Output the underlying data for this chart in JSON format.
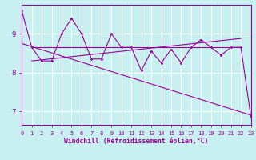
{
  "bg_color": "#c8f0f0",
  "line_color": "#990099",
  "xlabel": "Windchill (Refroidissement éolien,°C)",
  "xlim": [
    0,
    23
  ],
  "ylim": [
    6.65,
    9.75
  ],
  "yticks": [
    7,
    8,
    9
  ],
  "xticks": [
    0,
    1,
    2,
    3,
    4,
    5,
    6,
    7,
    8,
    9,
    10,
    11,
    12,
    13,
    14,
    15,
    16,
    17,
    18,
    19,
    20,
    21,
    22,
    23
  ],
  "jagged": {
    "x": [
      0,
      1,
      2,
      3,
      4,
      5,
      6,
      7,
      8,
      9,
      10,
      11,
      12,
      13,
      14,
      15,
      16,
      17,
      18,
      19,
      20,
      21,
      22,
      23
    ],
    "y": [
      9.6,
      8.65,
      8.3,
      8.3,
      9.0,
      9.4,
      9.0,
      8.35,
      8.35,
      9.0,
      8.65,
      8.65,
      8.05,
      8.55,
      8.25,
      8.6,
      8.25,
      8.65,
      8.85,
      8.65,
      8.45,
      8.65,
      8.65,
      6.85
    ]
  },
  "flat_line": {
    "x": [
      1,
      22
    ],
    "y": [
      8.65,
      8.65
    ]
  },
  "up_line": {
    "x": [
      1,
      22
    ],
    "y": [
      8.3,
      8.88
    ]
  },
  "down_line": {
    "x": [
      0,
      23
    ],
    "y": [
      8.75,
      6.9
    ]
  },
  "tick_fs": 5.0,
  "xlabel_fs": 5.8
}
